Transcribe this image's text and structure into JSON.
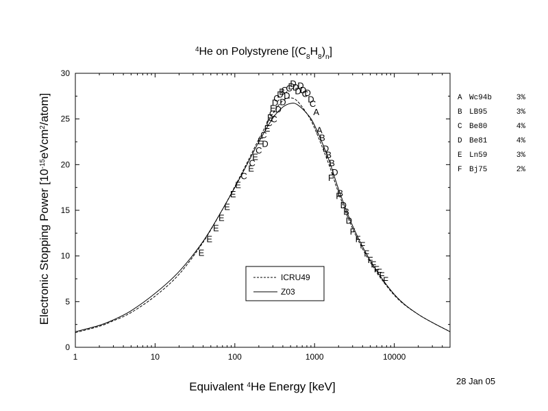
{
  "chart_data": {
    "type": "line",
    "title": {
      "prefix": "4",
      "main": "He on Polystyrene [(C",
      "sub1": "8",
      "mid": "H",
      "sub2": "8",
      "end": ")",
      "sub3": "n",
      "close": "]"
    },
    "xlabel": {
      "pre": "Equivalent ",
      "sup": "4",
      "post": "He Energy [keV]"
    },
    "ylabel": {
      "pre": "Electronic Stopping Power [10",
      "sup1": "-15",
      "mid": "eVcm",
      "sup2": "2",
      "post": "/atom]"
    },
    "x_scale": "log",
    "xlim": [
      1,
      50000
    ],
    "ylim": [
      0,
      30
    ],
    "x_ticks": [
      1,
      10,
      100,
      1000,
      10000
    ],
    "x_tick_labels": [
      "1",
      "10",
      "100",
      "1000",
      "10000"
    ],
    "y_ticks": [
      0,
      5,
      10,
      15,
      20,
      25,
      30
    ],
    "y_tick_labels": [
      "0",
      "5",
      "10",
      "15",
      "20",
      "25",
      "30"
    ],
    "date": "28 Jan 05",
    "series": [
      {
        "name": "ICRU49",
        "style": "dashed",
        "x": [
          1,
          2,
          3,
          5,
          10,
          20,
          40,
          70,
          100,
          150,
          200,
          300,
          400,
          500,
          600,
          800,
          1000,
          1500,
          2000,
          3000,
          5000,
          10000,
          20000,
          50000
        ],
        "values": [
          1.6,
          2.3,
          2.9,
          3.8,
          5.6,
          8.0,
          11.5,
          15.1,
          17.6,
          20.6,
          22.8,
          25.6,
          27.0,
          27.3,
          27.0,
          25.6,
          24.0,
          20.1,
          16.9,
          13.0,
          9.3,
          5.7,
          3.6,
          1.7
        ]
      },
      {
        "name": "Z03",
        "style": "solid",
        "x": [
          1,
          2,
          3,
          5,
          10,
          20,
          40,
          70,
          100,
          150,
          200,
          300,
          400,
          500,
          600,
          800,
          1000,
          1500,
          2000,
          3000,
          5000,
          10000,
          20000,
          50000
        ],
        "values": [
          1.7,
          2.4,
          3.0,
          4.0,
          5.9,
          8.3,
          11.6,
          15.1,
          17.5,
          20.4,
          22.5,
          25.1,
          26.3,
          26.7,
          26.6,
          25.6,
          24.3,
          20.6,
          17.3,
          13.3,
          9.5,
          5.8,
          3.6,
          1.7
        ]
      }
    ],
    "legend": {
      "placement": "bottom-center",
      "entries": [
        "ICRU49",
        "Z03"
      ]
    },
    "dataset_keys": [
      {
        "letter": "A",
        "ref": "Wc94b",
        "err": "3%"
      },
      {
        "letter": "B",
        "ref": "LB95",
        "err": "3%"
      },
      {
        "letter": "C",
        "ref": "Be80",
        "err": "4%"
      },
      {
        "letter": "D",
        "ref": "Be81",
        "err": "4%"
      },
      {
        "letter": "E",
        "ref": "Ln59",
        "err": "3%"
      },
      {
        "letter": "F",
        "ref": "Bj75",
        "err": "2%"
      }
    ],
    "points": [
      {
        "m": "E",
        "x": 38,
        "y": 10.4
      },
      {
        "m": "E",
        "x": 48,
        "y": 11.9
      },
      {
        "m": "E",
        "x": 58,
        "y": 13.1
      },
      {
        "m": "E",
        "x": 68,
        "y": 14.2
      },
      {
        "m": "E",
        "x": 80,
        "y": 15.4
      },
      {
        "m": "E",
        "x": 95,
        "y": 16.8
      },
      {
        "m": "E",
        "x": 110,
        "y": 17.8
      },
      {
        "m": "C",
        "x": 130,
        "y": 18.8
      },
      {
        "m": "E",
        "x": 160,
        "y": 19.6
      },
      {
        "m": "C",
        "x": 165,
        "y": 20.2
      },
      {
        "m": "E",
        "x": 180,
        "y": 20.9
      },
      {
        "m": "C",
        "x": 200,
        "y": 21.6
      },
      {
        "m": "E",
        "x": 210,
        "y": 22.6
      },
      {
        "m": "C",
        "x": 230,
        "y": 23.3
      },
      {
        "m": "D",
        "x": 240,
        "y": 22.3
      },
      {
        "m": "E",
        "x": 255,
        "y": 24.0
      },
      {
        "m": "C",
        "x": 270,
        "y": 24.6
      },
      {
        "m": "F",
        "x": 275,
        "y": 25.2
      },
      {
        "m": "C",
        "x": 295,
        "y": 25.6
      },
      {
        "m": "E",
        "x": 300,
        "y": 26.2
      },
      {
        "m": "C",
        "x": 310,
        "y": 25.0
      },
      {
        "m": "D",
        "x": 320,
        "y": 26.8
      },
      {
        "m": "C",
        "x": 335,
        "y": 27.3
      },
      {
        "m": "D",
        "x": 350,
        "y": 26.1
      },
      {
        "m": "D",
        "x": 370,
        "y": 27.7
      },
      {
        "m": "B",
        "x": 390,
        "y": 28.0
      },
      {
        "m": "D",
        "x": 400,
        "y": 26.9
      },
      {
        "m": "C",
        "x": 420,
        "y": 28.2
      },
      {
        "m": "D",
        "x": 450,
        "y": 27.6
      },
      {
        "m": "C",
        "x": 480,
        "y": 28.4
      },
      {
        "m": "D",
        "x": 510,
        "y": 28.6
      },
      {
        "m": "D",
        "x": 540,
        "y": 28.9
      },
      {
        "m": "D",
        "x": 580,
        "y": 28.5
      },
      {
        "m": "D",
        "x": 620,
        "y": 28.1
      },
      {
        "m": "D",
        "x": 670,
        "y": 28.7
      },
      {
        "m": "D",
        "x": 720,
        "y": 28.2
      },
      {
        "m": "C",
        "x": 760,
        "y": 27.8
      },
      {
        "m": "D",
        "x": 820,
        "y": 27.9
      },
      {
        "m": "D",
        "x": 900,
        "y": 27.2
      },
      {
        "m": "C",
        "x": 950,
        "y": 26.7
      },
      {
        "m": "A",
        "x": 1050,
        "y": 25.8
      },
      {
        "m": "A",
        "x": 1150,
        "y": 23.8
      },
      {
        "m": "B",
        "x": 1250,
        "y": 23.0
      },
      {
        "m": "D",
        "x": 1380,
        "y": 21.8
      },
      {
        "m": "B",
        "x": 1500,
        "y": 21.1
      },
      {
        "m": "F",
        "x": 1600,
        "y": 18.6
      },
      {
        "m": "B",
        "x": 1650,
        "y": 20.2
      },
      {
        "m": "D",
        "x": 1800,
        "y": 19.2
      },
      {
        "m": "F",
        "x": 2000,
        "y": 16.6
      },
      {
        "m": "B",
        "x": 2100,
        "y": 16.9
      },
      {
        "m": "D",
        "x": 2300,
        "y": 15.6
      },
      {
        "m": "B",
        "x": 2500,
        "y": 14.9
      },
      {
        "m": "D",
        "x": 2700,
        "y": 13.9
      },
      {
        "m": "F",
        "x": 3000,
        "y": 12.7
      },
      {
        "m": "F",
        "x": 3500,
        "y": 11.9
      },
      {
        "m": "F",
        "x": 4000,
        "y": 11.2
      },
      {
        "m": "F",
        "x": 4500,
        "y": 10.3
      },
      {
        "m": "F",
        "x": 5000,
        "y": 9.6
      },
      {
        "m": "F",
        "x": 5500,
        "y": 9.1
      },
      {
        "m": "F",
        "x": 6000,
        "y": 8.6
      },
      {
        "m": "F",
        "x": 6500,
        "y": 8.3
      },
      {
        "m": "F",
        "x": 7000,
        "y": 7.9
      },
      {
        "m": "F",
        "x": 7800,
        "y": 7.4
      }
    ]
  }
}
